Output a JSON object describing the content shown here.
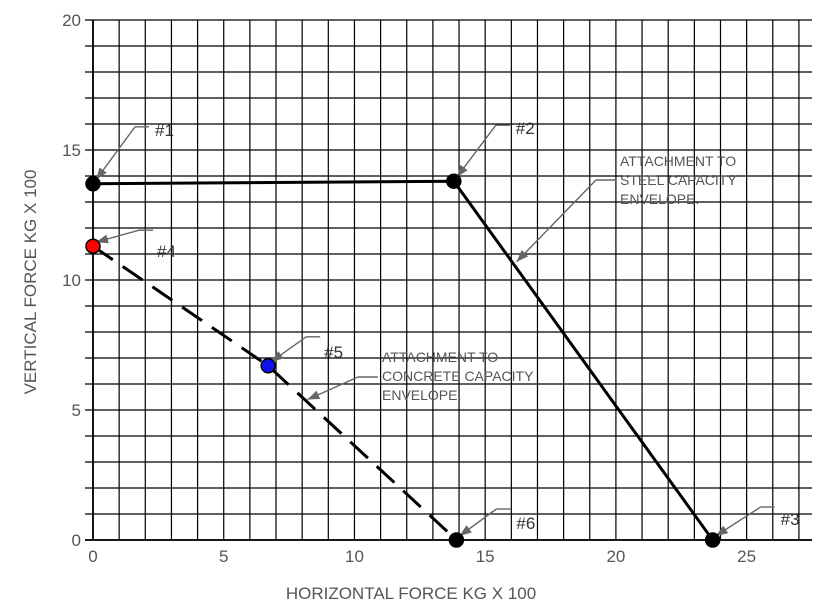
{
  "chart_data": {
    "type": "line",
    "xlabel": "HORIZONTAL FORCE KG X 100",
    "ylabel": "VERTICAL FORCE KG X 100",
    "xlim": [
      0,
      27.5
    ],
    "ylim": [
      0,
      20
    ],
    "x_ticks": [
      0,
      5,
      10,
      15,
      20,
      25
    ],
    "y_ticks": [
      0,
      5,
      10,
      15,
      20
    ],
    "grid": true,
    "grid_step": 1,
    "series": [
      {
        "style": "solid",
        "color": "#000000",
        "points": [
          {
            "x": 0,
            "y": 13.7
          },
          {
            "x": 13.8,
            "y": 13.8
          },
          {
            "x": 23.7,
            "y": 0
          }
        ]
      },
      {
        "style": "dashed",
        "color": "#000000",
        "points": [
          {
            "x": 0,
            "y": 11.3
          },
          {
            "x": 6.7,
            "y": 6.7
          },
          {
            "x": 13.9,
            "y": 0
          }
        ]
      }
    ],
    "points": [
      {
        "label": "#1",
        "x": 0,
        "y": 13.7,
        "color": "#000000"
      },
      {
        "label": "#2",
        "x": 13.8,
        "y": 13.8,
        "color": "#000000"
      },
      {
        "label": "#3",
        "x": 23.7,
        "y": 0,
        "color": "#000000"
      },
      {
        "label": "#4",
        "x": 0,
        "y": 11.3,
        "color": "#ff0000"
      },
      {
        "label": "#5",
        "x": 6.7,
        "y": 6.7,
        "color": "#1010ee"
      },
      {
        "label": "#6",
        "x": 13.9,
        "y": 0,
        "color": "#000000"
      }
    ],
    "annotations": [
      {
        "lines": [
          "ATTACHMENT TO",
          "STEEL CAPACITY",
          "ENVELOPE."
        ],
        "target": {
          "x": 16.2,
          "y": 10.7
        }
      },
      {
        "lines": [
          "ATTACHMENT TO",
          "CONCRETE CAPACITY",
          "ENVELOPE."
        ],
        "target": {
          "x": 8.2,
          "y": 5.4
        }
      }
    ]
  }
}
